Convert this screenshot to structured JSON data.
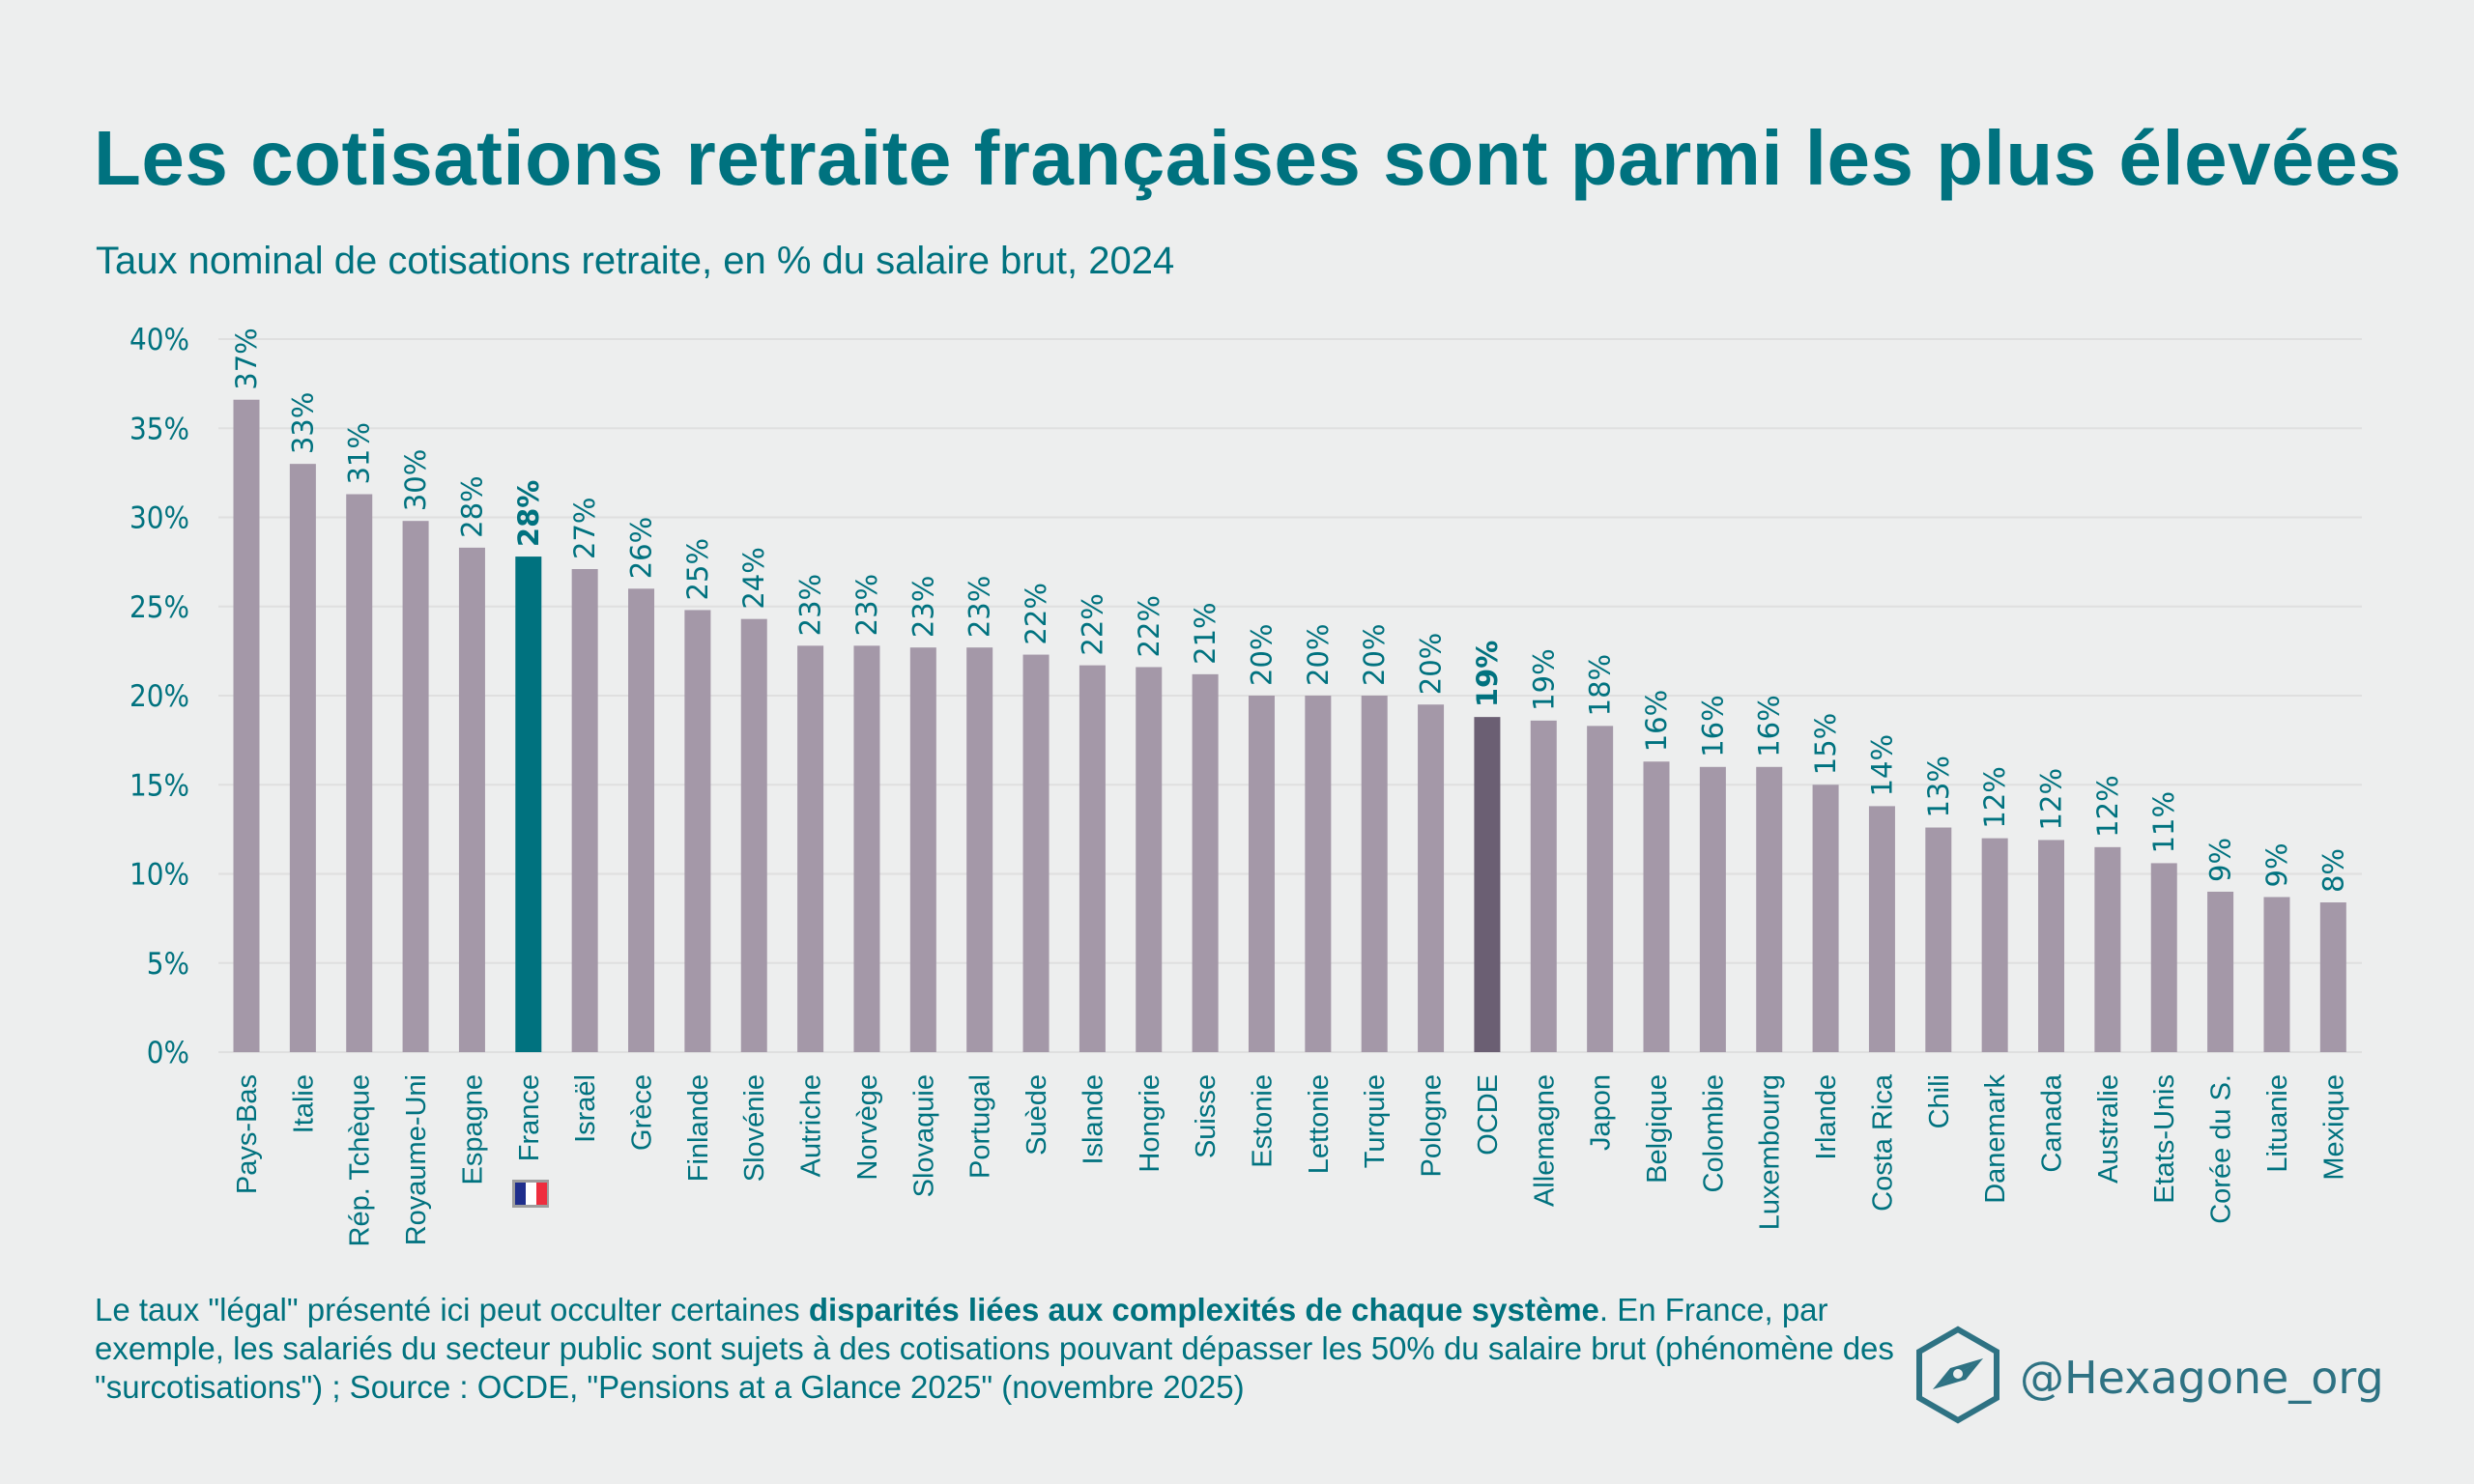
{
  "header": {
    "title": "Les cotisations retraite françaises sont parmi les plus élevées",
    "subtitle": "Taux nominal de cotisations retraite, en % du salaire brut, 2024"
  },
  "footer": {
    "note_part1": "Le taux \"légal\" présenté ici peut occulter certaines ",
    "note_bold": "disparités liées aux complexités de chaque système",
    "note_part2": ". En France, par exemple, les salariés du secteur public sont sujets à des cotisations pouvant dépasser les 50% du salaire brut (phénomène des \"surcotisations\") ; Source : OCDE, \"Pensions at a Glance 2025\" (novembre 2025)",
    "brand_handle": "@Hexagone_org",
    "brand_icon": "hexagon-compass-icon"
  },
  "colors": {
    "text": "#00727F",
    "bar_default": "#A498A8",
    "bar_france": "#00727F",
    "bar_oecd": "#6B5F73",
    "grid": "#DFDFDF",
    "background": "#EDEEEE"
  },
  "chart_data": {
    "type": "bar",
    "title": "Les cotisations retraite françaises sont parmi les plus élevées",
    "subtitle": "Taux nominal de cotisations retraite, en % du salaire brut, 2024",
    "xlabel": "",
    "ylabel": "",
    "ylim": [
      0,
      40
    ],
    "yticks": [
      0,
      5,
      10,
      15,
      20,
      25,
      30,
      35,
      40
    ],
    "ytick_labels": [
      "0%",
      "5%",
      "10%",
      "15%",
      "20%",
      "25%",
      "30%",
      "35%",
      "40%"
    ],
    "grid": true,
    "legend": "none",
    "categories": [
      "Pays-Bas",
      "Italie",
      "Rép. Tchèque",
      "Royaume-Uni",
      "Espagne",
      "France",
      "Israël",
      "Grèce",
      "Finlande",
      "Slovénie",
      "Autriche",
      "Norvège",
      "Slovaquie",
      "Portugal",
      "Suède",
      "Islande",
      "Hongrie",
      "Suisse",
      "Estonie",
      "Lettonie",
      "Turquie",
      "Pologne",
      "OCDE",
      "Allemagne",
      "Japon",
      "Belgique",
      "Colombie",
      "Luxembourg",
      "Irlande",
      "Costa Rica",
      "Chili",
      "Danemark",
      "Canada",
      "Australie",
      "Etats-Unis",
      "Corée du S.",
      "Lituanie",
      "Mexique"
    ],
    "values": [
      36.6,
      33.0,
      31.3,
      29.8,
      28.3,
      27.8,
      27.1,
      26.0,
      24.8,
      24.3,
      22.8,
      22.8,
      22.7,
      22.7,
      22.3,
      21.7,
      21.6,
      21.2,
      20.0,
      20.0,
      20.0,
      19.5,
      18.8,
      18.6,
      18.3,
      16.3,
      16.0,
      16.0,
      15.0,
      13.8,
      12.6,
      12.0,
      11.9,
      11.5,
      10.6,
      9.0,
      8.7,
      8.4
    ],
    "data_labels": [
      "37%",
      "33%",
      "31%",
      "30%",
      "28%",
      "28%",
      "27%",
      "26%",
      "25%",
      "24%",
      "23%",
      "23%",
      "23%",
      "23%",
      "22%",
      "22%",
      "22%",
      "21%",
      "20%",
      "20%",
      "20%",
      "20%",
      "19%",
      "19%",
      "18%",
      "16%",
      "16%",
      "16%",
      "15%",
      "14%",
      "13%",
      "12%",
      "12%",
      "12%",
      "11%",
      "9%",
      "9%",
      "8%"
    ],
    "highlights": {
      "France": "bar_france",
      "OCDE": "bar_oecd"
    },
    "annotations": [
      {
        "category": "France",
        "type": "flag",
        "value": "French flag icon"
      }
    ]
  }
}
